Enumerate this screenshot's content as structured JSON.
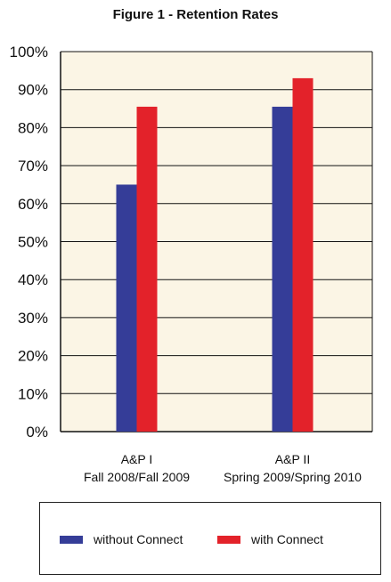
{
  "chart_data": {
    "type": "bar",
    "title": "Figure 1 - Retention Rates",
    "categories": [
      [
        "A&P I",
        "Fall 2008/Fall 2009"
      ],
      [
        "A&P II",
        "Spring 2009/Spring 2010"
      ]
    ],
    "series": [
      {
        "name": "without Connect",
        "values": [
          65,
          85.5
        ],
        "color": "#353d98"
      },
      {
        "name": "with Connect",
        "values": [
          85.5,
          93
        ],
        "color": "#e3222a"
      }
    ],
    "ylim": [
      0,
      100
    ],
    "yticks": [
      "0%",
      "10%",
      "20%",
      "30%",
      "40%",
      "50%",
      "60%",
      "70%",
      "80%",
      "90%",
      "100%"
    ],
    "ytick_values": [
      0,
      10,
      20,
      30,
      40,
      50,
      60,
      70,
      80,
      90,
      100
    ],
    "plot_background": "#fbf5e5",
    "legend_position": "bottom"
  }
}
